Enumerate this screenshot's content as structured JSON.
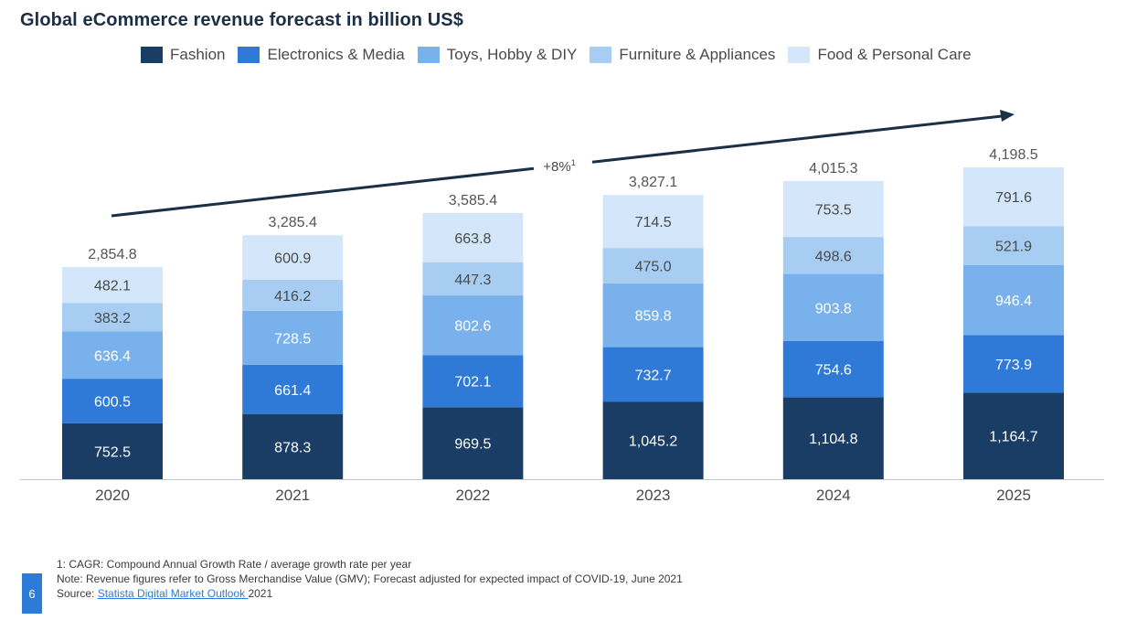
{
  "title": "Global eCommerce revenue forecast in billion US$",
  "footnotes": {
    "note1": "1: CAGR: Compound Annual Growth Rate / average growth rate per year",
    "note2": "Note: Revenue figures refer to Gross Merchandise Value (GMV); Forecast adjusted for expected impact of COVID-19, June 2021",
    "source_prefix": "Source: ",
    "source_link": "Statista Digital Market Outlook ",
    "source_suffix": "2021"
  },
  "page_number": "6",
  "chart_data": {
    "type": "bar",
    "stacked": true,
    "title": "Global eCommerce revenue forecast in billion US$",
    "xlabel": "",
    "ylabel": "",
    "ylim": [
      0,
      4198.5
    ],
    "grid": false,
    "legend_position": "top",
    "categories": [
      "2020",
      "2021",
      "2022",
      "2023",
      "2024",
      "2025"
    ],
    "series": [
      {
        "name": "Fashion",
        "color": "#1a3d66",
        "values": [
          752.5,
          878.3,
          969.5,
          1045.2,
          1104.8,
          1164.7
        ],
        "labels": [
          "752.5",
          "878.3",
          "969.5",
          "1,045.2",
          "1,104.8",
          "1,164.7"
        ]
      },
      {
        "name": "Electronics & Media",
        "color": "#2f7ad6",
        "values": [
          600.5,
          661.4,
          702.1,
          732.7,
          754.6,
          773.9
        ],
        "labels": [
          "600.5",
          "661.4",
          "702.1",
          "732.7",
          "754.6",
          "773.9"
        ]
      },
      {
        "name": "Toys, Hobby & DIY",
        "color": "#78b1ec",
        "values": [
          636.4,
          728.5,
          802.6,
          859.8,
          903.8,
          946.4
        ],
        "labels": [
          "636.4",
          "728.5",
          "802.6",
          "859.8",
          "903.8",
          "946.4"
        ]
      },
      {
        "name": "Furniture & Appliances",
        "color": "#a7cdf3",
        "values": [
          383.2,
          416.2,
          447.3,
          475.0,
          498.6,
          521.9
        ],
        "labels": [
          "383.2",
          "416.2",
          "447.3",
          "475.0",
          "498.6",
          "521.9"
        ]
      },
      {
        "name": "Food & Personal Care",
        "color": "#d3e6fa",
        "values": [
          482.1,
          600.9,
          663.8,
          714.5,
          753.5,
          791.6
        ],
        "labels": [
          "482.1",
          "600.9",
          "663.8",
          "714.5",
          "753.5",
          "791.6"
        ]
      }
    ],
    "totals": [
      "2,854.8",
      "3,285.4",
      "3,585.4",
      "3,827.1",
      "4,015.3",
      "4,198.5"
    ],
    "annotations": [
      {
        "text": "+8%",
        "superscript": "1",
        "kind": "cagr-arrow"
      }
    ]
  }
}
